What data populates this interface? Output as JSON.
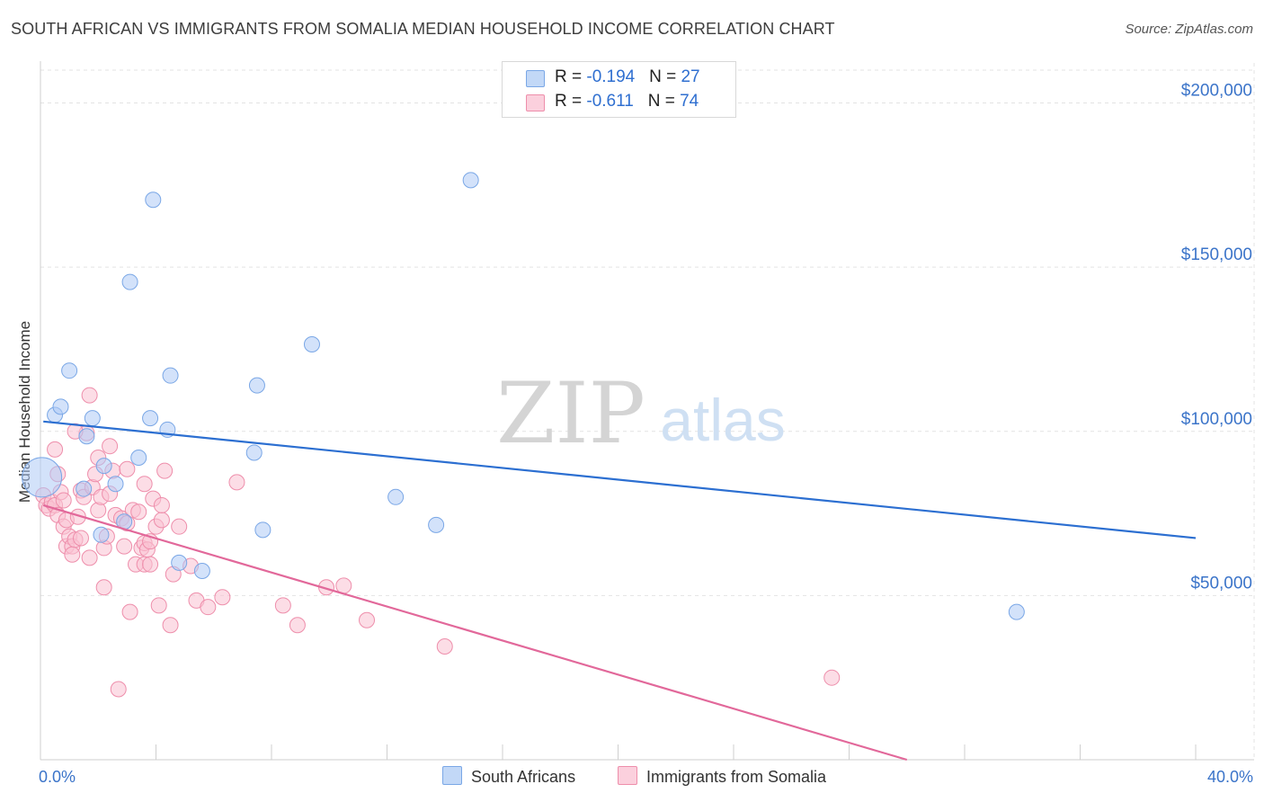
{
  "title": "SOUTH AFRICAN VS IMMIGRANTS FROM SOMALIA MEDIAN HOUSEHOLD INCOME CORRELATION CHART",
  "source": "Source: ZipAtlas.com",
  "watermark": {
    "part1": "ZIP",
    "part2": "atlas"
  },
  "legend_top": [
    {
      "r_label": "R = ",
      "r_value": "-0.194",
      "n_label": "N = ",
      "n_value": "27"
    },
    {
      "r_label": "R = ",
      "r_value": "-0.611",
      "n_label": "N = ",
      "n_value": "74"
    }
  ],
  "legend_bottom": [
    "South Africans",
    "Immigrants from Somalia"
  ],
  "colors": {
    "blue_fill": "#aecbf5",
    "blue_stroke": "#7aa7e6",
    "blue_line": "#2c6fd1",
    "pink_fill": "#f9c1d2",
    "pink_stroke": "#ee8eab",
    "pink_line": "#e2689a",
    "grid": "#e3e3e3",
    "tick_text": "#3b74c9"
  },
  "chart_data": {
    "type": "scatter",
    "title": "SOUTH AFRICAN VS IMMIGRANTS FROM SOMALIA MEDIAN HOUSEHOLD INCOME CORRELATION CHART",
    "xlabel": "",
    "ylabel": "Median Household Income",
    "xlim": [
      0,
      40
    ],
    "ylim": [
      0,
      210000
    ],
    "x_tick_labels": [
      "0.0%",
      "40.0%"
    ],
    "y_ticks": [
      50000,
      100000,
      150000,
      200000
    ],
    "y_tick_labels": [
      "$50,000",
      "$100,000",
      "$150,000",
      "$200,000"
    ],
    "grid": true,
    "legend_placement": "top-center",
    "series": [
      {
        "name": "South Africans",
        "points": [
          [
            0.05,
            86000
          ],
          [
            0.5,
            105000
          ],
          [
            0.7,
            107500
          ],
          [
            1.0,
            118500
          ],
          [
            1.5,
            82500
          ],
          [
            1.6,
            98500
          ],
          [
            1.8,
            104000
          ],
          [
            2.1,
            68500
          ],
          [
            2.2,
            89500
          ],
          [
            2.6,
            84000
          ],
          [
            2.9,
            72500
          ],
          [
            3.1,
            145500
          ],
          [
            3.4,
            92000
          ],
          [
            3.8,
            104000
          ],
          [
            3.9,
            170500
          ],
          [
            4.4,
            100500
          ],
          [
            4.5,
            117000
          ],
          [
            4.8,
            60000
          ],
          [
            5.6,
            57500
          ],
          [
            7.4,
            93500
          ],
          [
            7.5,
            114000
          ],
          [
            7.7,
            70000
          ],
          [
            9.4,
            126500
          ],
          [
            12.3,
            80000
          ],
          [
            13.7,
            71500
          ],
          [
            14.9,
            176500
          ],
          [
            33.8,
            45000
          ]
        ],
        "trend": {
          "x0": 0.1,
          "y0": 103000,
          "x1": 40,
          "y1": 67500
        }
      },
      {
        "name": "Immigrants from Somalia",
        "points": [
          [
            0.1,
            80500
          ],
          [
            0.2,
            77500
          ],
          [
            0.3,
            76500
          ],
          [
            0.4,
            78500
          ],
          [
            0.5,
            94500
          ],
          [
            0.5,
            77500
          ],
          [
            0.6,
            74500
          ],
          [
            0.7,
            81500
          ],
          [
            0.8,
            79000
          ],
          [
            0.8,
            71000
          ],
          [
            0.9,
            73000
          ],
          [
            0.9,
            65000
          ],
          [
            1.0,
            68000
          ],
          [
            1.1,
            65000
          ],
          [
            1.2,
            67000
          ],
          [
            1.3,
            74000
          ],
          [
            1.4,
            82000
          ],
          [
            1.4,
            67500
          ],
          [
            1.5,
            80000
          ],
          [
            1.6,
            99500
          ],
          [
            1.7,
            61500
          ],
          [
            1.7,
            111000
          ],
          [
            1.8,
            83000
          ],
          [
            1.9,
            87000
          ],
          [
            2.0,
            76000
          ],
          [
            2.1,
            80000
          ],
          [
            2.2,
            52500
          ],
          [
            2.2,
            64500
          ],
          [
            2.3,
            68000
          ],
          [
            2.4,
            81000
          ],
          [
            2.4,
            95500
          ],
          [
            2.5,
            88000
          ],
          [
            2.6,
            74500
          ],
          [
            2.7,
            21500
          ],
          [
            2.8,
            73500
          ],
          [
            2.9,
            65000
          ],
          [
            3.0,
            88500
          ],
          [
            3.0,
            72000
          ],
          [
            3.1,
            45000
          ],
          [
            3.2,
            76000
          ],
          [
            3.3,
            59500
          ],
          [
            3.4,
            75500
          ],
          [
            3.5,
            64500
          ],
          [
            3.6,
            59500
          ],
          [
            3.6,
            66000
          ],
          [
            3.7,
            64000
          ],
          [
            3.8,
            66500
          ],
          [
            3.8,
            59500
          ],
          [
            3.9,
            79500
          ],
          [
            4.0,
            71000
          ],
          [
            4.1,
            47000
          ],
          [
            4.2,
            73000
          ],
          [
            4.2,
            77500
          ],
          [
            4.3,
            88000
          ],
          [
            4.5,
            41000
          ],
          [
            4.6,
            56500
          ],
          [
            4.8,
            71000
          ],
          [
            5.2,
            59000
          ],
          [
            5.4,
            48500
          ],
          [
            5.8,
            46500
          ],
          [
            6.3,
            49500
          ],
          [
            6.8,
            84500
          ],
          [
            8.4,
            47000
          ],
          [
            8.9,
            41000
          ],
          [
            9.9,
            52500
          ],
          [
            10.5,
            53000
          ],
          [
            11.3,
            42500
          ],
          [
            14.0,
            34500
          ],
          [
            27.4,
            25000
          ],
          [
            1.1,
            62500
          ],
          [
            2.0,
            92000
          ],
          [
            0.6,
            87000
          ],
          [
            3.6,
            84000
          ],
          [
            1.2,
            100000
          ]
        ],
        "trend": {
          "x0": 0.1,
          "y0": 77500,
          "x1": 30,
          "y1": 0
        }
      }
    ]
  }
}
